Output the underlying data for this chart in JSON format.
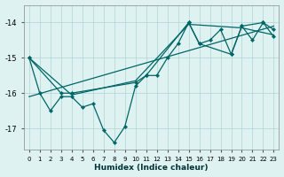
{
  "xlabel": "Humidex (Indice chaleur)",
  "bg_color": "#dff2f2",
  "grid_color": "#c0e0e0",
  "line_color": "#006666",
  "xlim": [
    -0.5,
    23.5
  ],
  "ylim": [
    -17.6,
    -13.5
  ],
  "yticks": [
    -17,
    -16,
    -15,
    -14
  ],
  "xticks": [
    0,
    1,
    2,
    3,
    4,
    5,
    6,
    7,
    8,
    9,
    10,
    11,
    12,
    13,
    14,
    15,
    16,
    17,
    18,
    19,
    20,
    21,
    22,
    23
  ],
  "series1_x": [
    0,
    1,
    2,
    3,
    4,
    5,
    6,
    7,
    8,
    9,
    10,
    11,
    12,
    13,
    14,
    15,
    16,
    17,
    18,
    19,
    20,
    21,
    22,
    23
  ],
  "series1_y": [
    -15.0,
    -16.0,
    -16.5,
    -16.1,
    -16.1,
    -16.4,
    -16.3,
    -17.05,
    -17.4,
    -16.95,
    -15.8,
    -15.5,
    -15.5,
    -15.0,
    -14.6,
    -14.0,
    -14.6,
    -14.5,
    -14.2,
    -14.9,
    -14.1,
    -14.5,
    -14.0,
    -14.2
  ],
  "series2_x": [
    0,
    3,
    4,
    10,
    11,
    15,
    16,
    19,
    20,
    22,
    23
  ],
  "series2_y": [
    -15.0,
    -16.0,
    -16.0,
    -15.7,
    -15.5,
    -14.0,
    -14.6,
    -14.9,
    -14.1,
    -14.0,
    -14.4
  ],
  "trend_x": [
    0,
    23
  ],
  "trend_y": [
    -16.1,
    -14.1
  ],
  "series3_x": [
    0,
    4,
    10,
    15,
    20,
    23
  ],
  "series3_y": [
    -15.0,
    -16.05,
    -15.65,
    -14.05,
    -14.15,
    -14.35
  ]
}
